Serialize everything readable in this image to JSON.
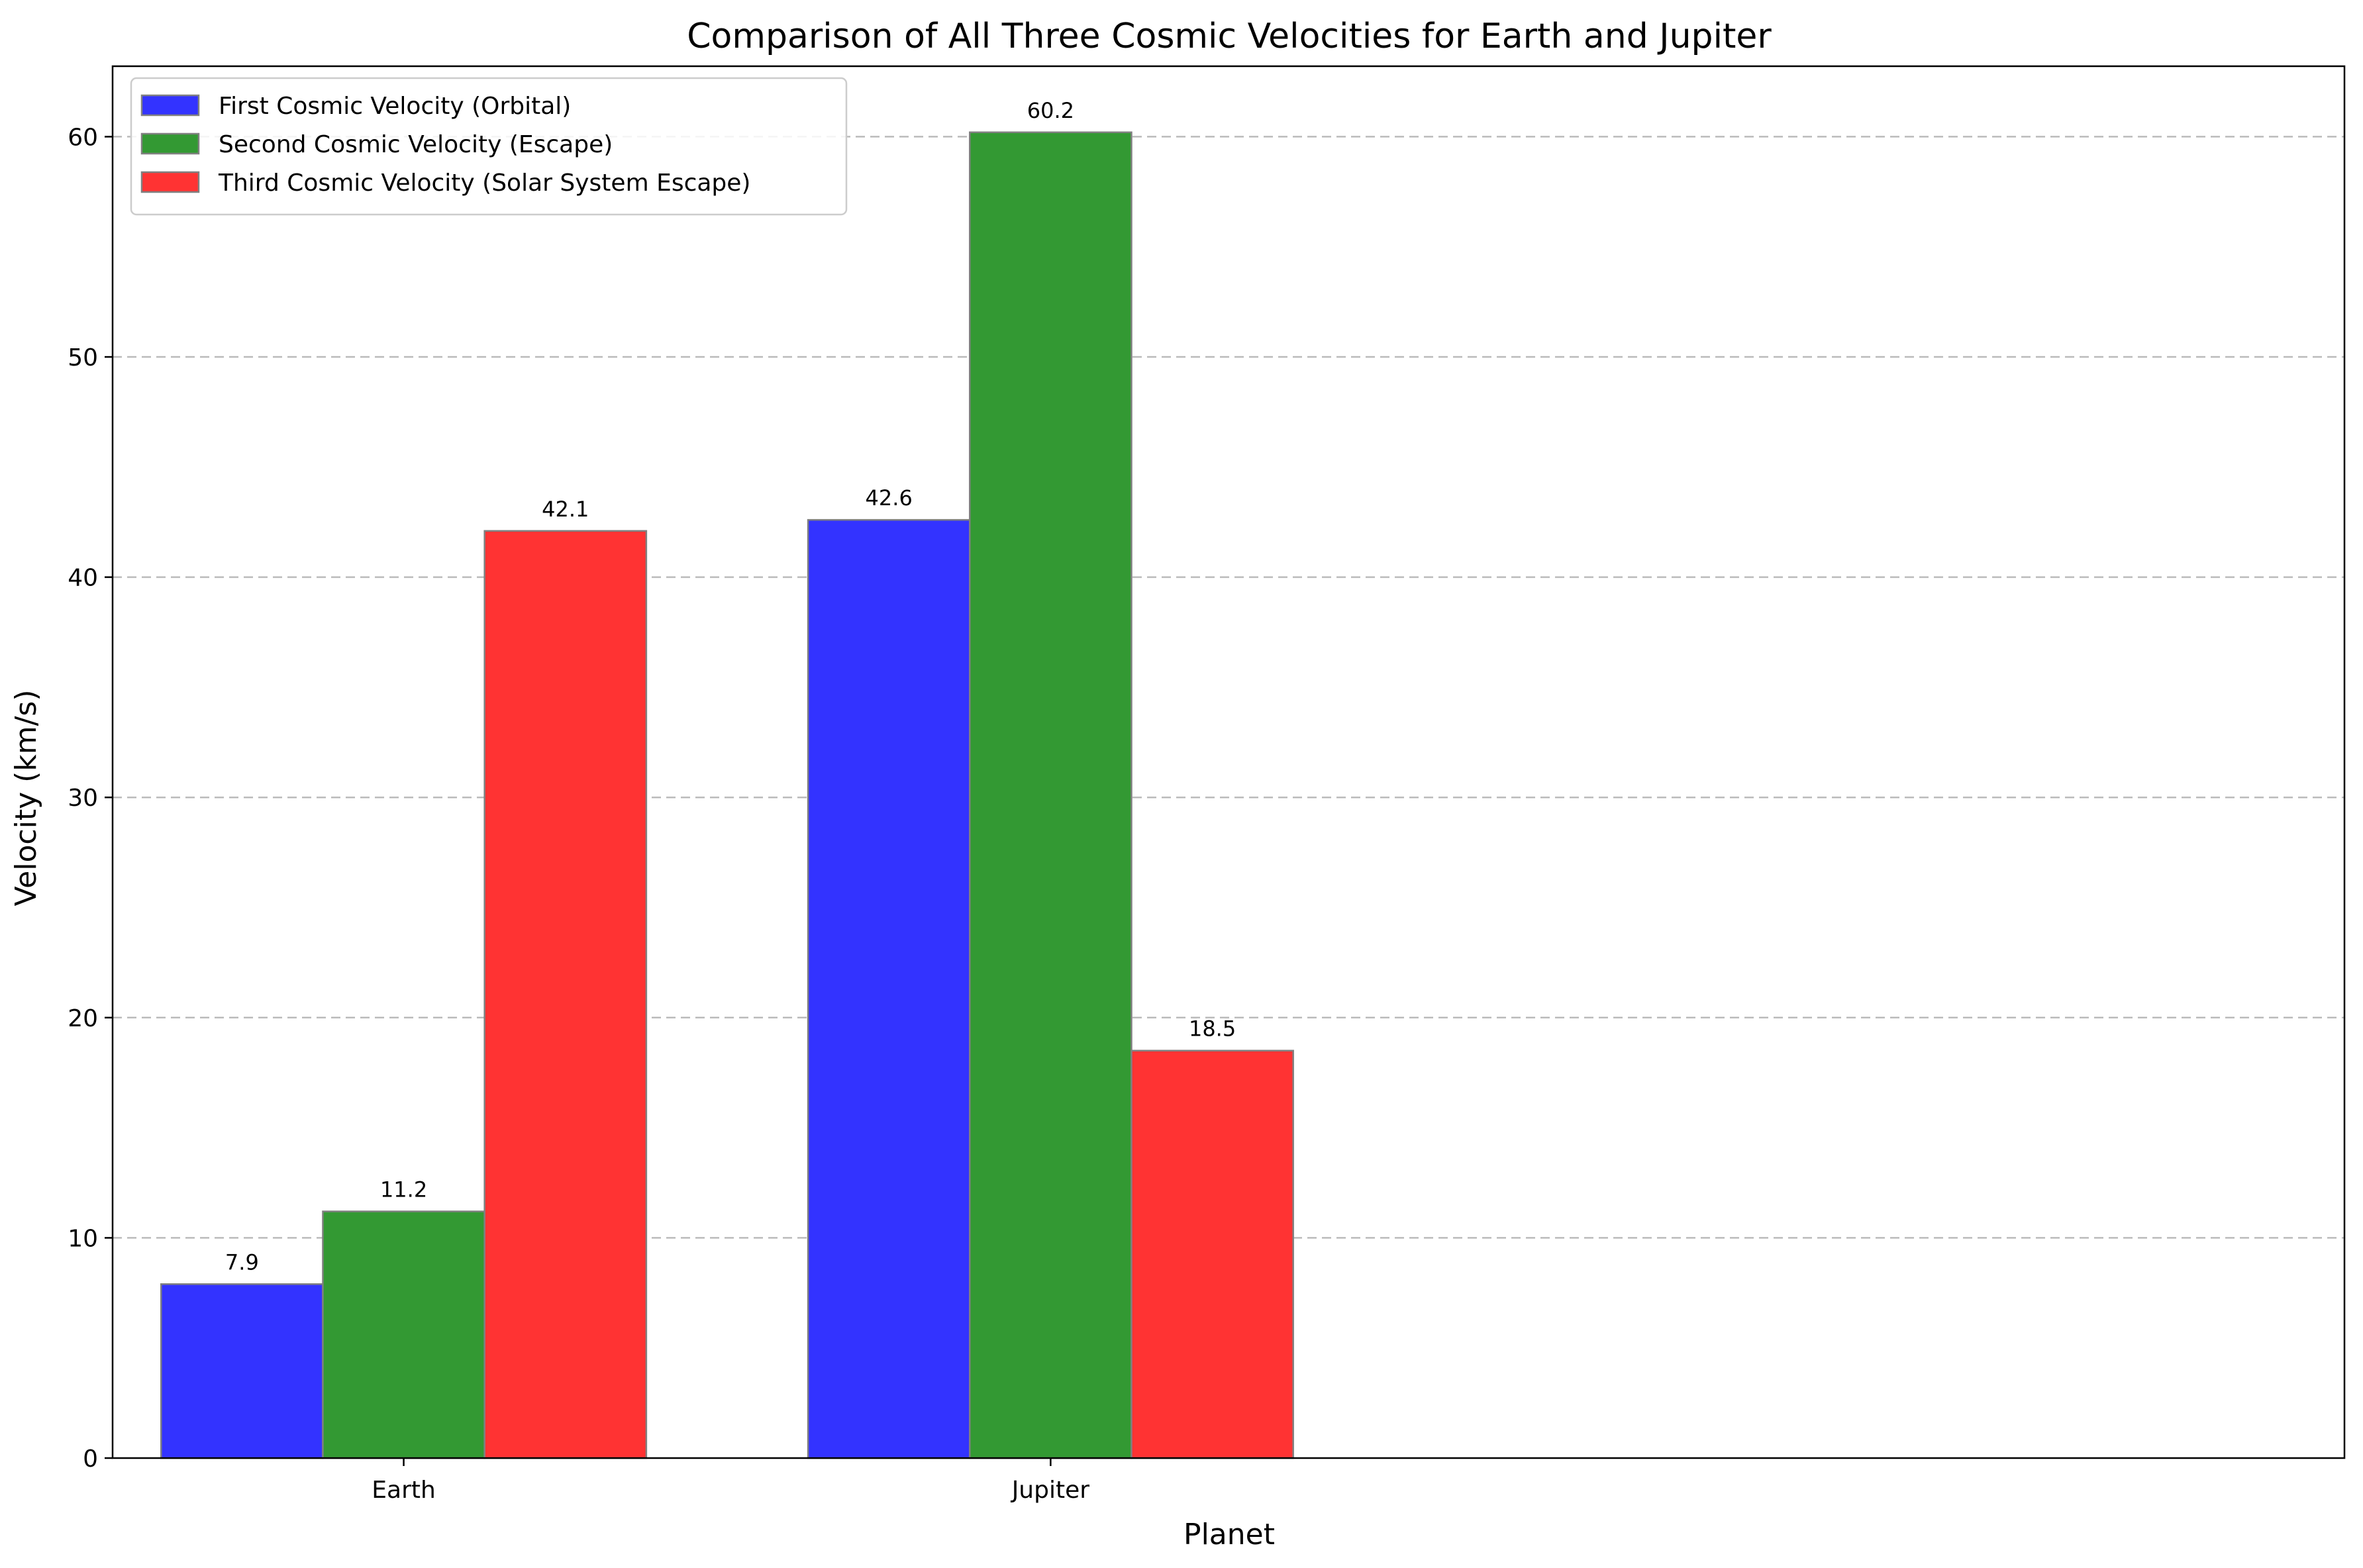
{
  "chart_data": {
    "type": "bar",
    "title": "Comparison of All Three Cosmic Velocities for Earth and Jupiter",
    "xlabel": "Planet",
    "ylabel": "Velocity (km/s)",
    "categories": [
      "Earth",
      "Jupiter"
    ],
    "ylim": [
      0,
      63.2
    ],
    "yticks": [
      0,
      10,
      20,
      30,
      40,
      50,
      60
    ],
    "grid": "y-dashed",
    "legend_position": "top-left",
    "series": [
      {
        "name": "First Cosmic Velocity (Orbital)",
        "color": "#3333ff",
        "values": [
          7.9,
          42.6
        ],
        "labels": [
          "7.9",
          "42.6"
        ]
      },
      {
        "name": "Second Cosmic Velocity (Escape)",
        "color": "#339933",
        "values": [
          11.2,
          60.2
        ],
        "labels": [
          "11.2",
          "60.2"
        ]
      },
      {
        "name": "Third Cosmic Velocity (Solar System Escape)",
        "color": "#ff3333",
        "values": [
          42.1,
          18.5
        ],
        "labels": [
          "42.1",
          "18.5"
        ]
      }
    ]
  }
}
